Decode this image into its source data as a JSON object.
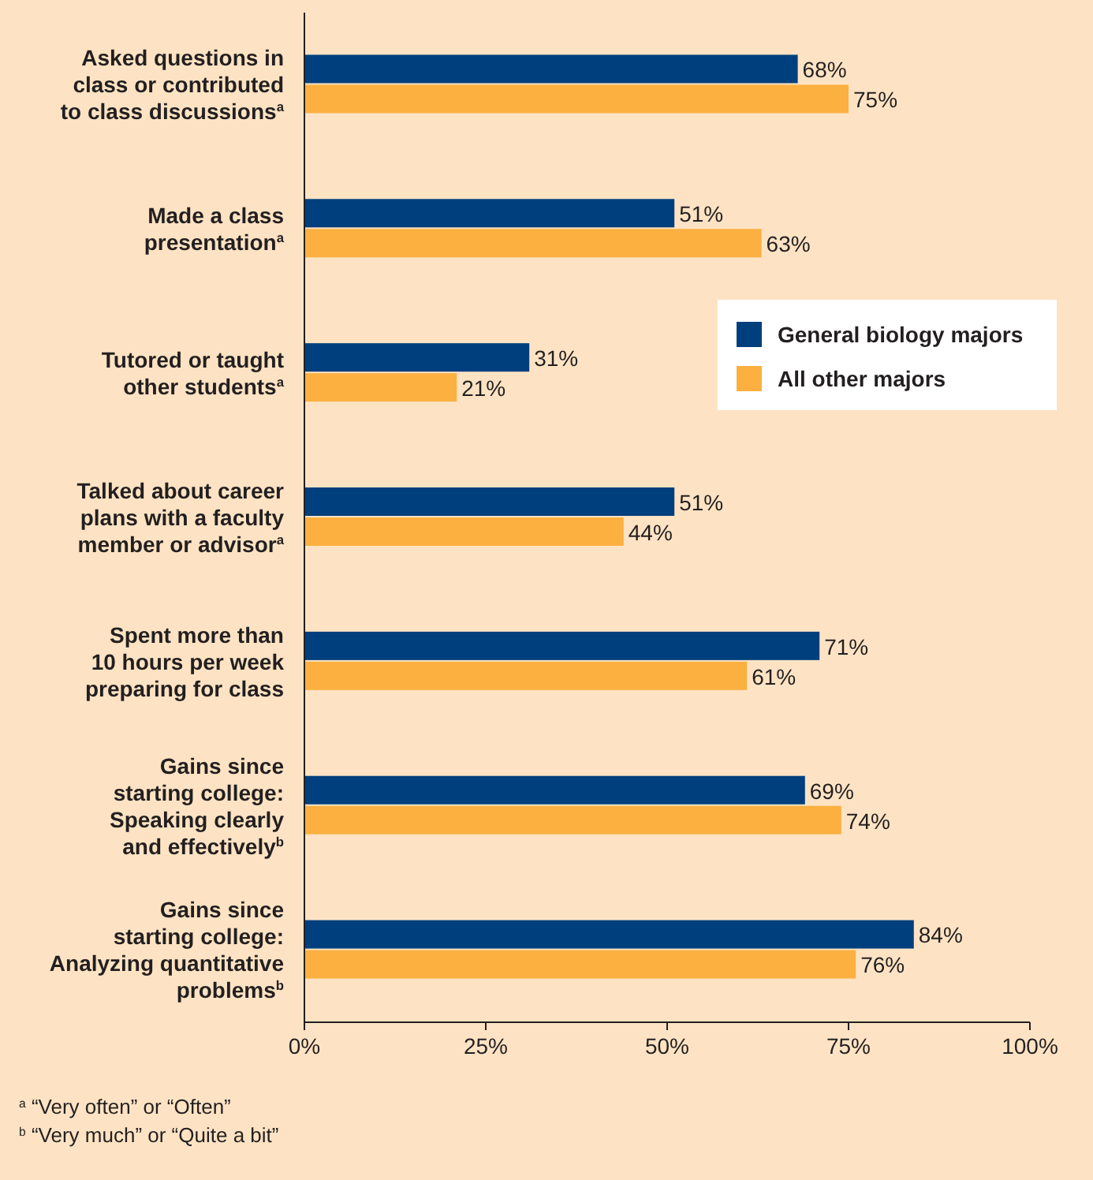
{
  "chart_data": {
    "type": "bar",
    "orientation": "horizontal",
    "categories": [
      "Asked questions in\nclass or contributed\nto class discussions$^{a}$",
      "Made a class\npresentation$^{a}$",
      "Tutored or taught\nother students$^{a}$",
      "Talked about career\nplans with a faculty\nmember or advisor$^{a}$",
      "Spent more than\n10 hours per week\npreparing for class",
      "Gains since\nstarting college:\nSpeaking clearly\nand effectively$^{b}$",
      "Gains since\nstarting college:\nAnalyzing quantitative\nproblems$^{b}$"
    ],
    "series": [
      {
        "name": "General biology majors",
        "color": "#003f7d",
        "values": [
          68,
          51,
          31,
          51,
          71,
          69,
          84
        ],
        "value_labels": [
          "68%",
          "51%",
          "31%",
          "51%",
          "71%",
          "69%",
          "84%"
        ]
      },
      {
        "name": "All other majors",
        "color": "#fbb040",
        "values": [
          75,
          63,
          21,
          44,
          61,
          74,
          76
        ],
        "value_labels": [
          "75%",
          "63%",
          "21%",
          "44%",
          "61%",
          "74%",
          "76%"
        ]
      }
    ],
    "xlim": [
      0,
      100
    ],
    "xticks": [
      {
        "value": 0,
        "label": "0%"
      },
      {
        "value": 25,
        "label": "25%"
      },
      {
        "value": 50,
        "label": "50%"
      },
      {
        "value": 75,
        "label": "75%"
      },
      {
        "value": 100,
        "label": "100%"
      }
    ],
    "legend": "top right",
    "grid": false,
    "annotations": [
      "$^{a}$ “Very often” or “Often”",
      "$^{b}$ “Very much” or “Quite a bit”"
    ]
  }
}
